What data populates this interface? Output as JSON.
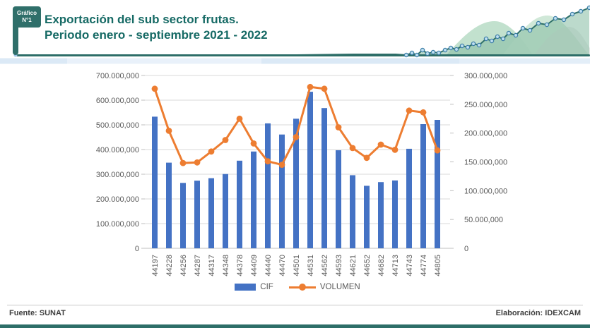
{
  "header": {
    "badge_line1": "Gráfico",
    "badge_line2": "N°1",
    "title_line1": "Exportación del sub sector frutas.",
    "title_line2": "Periodo enero - septiembre 2021 - 2022"
  },
  "footer": {
    "source": "Fuente: SUNAT",
    "elaboration": "Elaboración: IDEXCAM"
  },
  "colors": {
    "accent_teal": "#2D6E68",
    "title_teal": "#166A65",
    "bar_blue": "#4472C4",
    "line_orange": "#ED7D31",
    "axis_text": "#595959",
    "gridline": "#D9D9D9",
    "footer_text": "#3F3F3F"
  },
  "chart_data": {
    "type": "bar+line combo",
    "title": "Exportación del sub sector frutas. Periodo enero - septiembre 2021 - 2022",
    "categories": [
      "44197",
      "44228",
      "44256",
      "44287",
      "44317",
      "44348",
      "44378",
      "44409",
      "44440",
      "44470",
      "44501",
      "44531",
      "44562",
      "44593",
      "44621",
      "44652",
      "44682",
      "44713",
      "44743",
      "44774",
      "44805"
    ],
    "series": [
      {
        "name": "CIF",
        "kind": "bar",
        "axis": "left",
        "color": "#4472C4",
        "values": [
          533000000,
          347000000,
          265000000,
          274000000,
          284000000,
          301000000,
          355000000,
          392000000,
          506000000,
          461000000,
          525000000,
          634000000,
          568000000,
          397000000,
          296000000,
          253000000,
          268000000,
          275000000,
          403000000,
          503000000,
          520000000
        ]
      },
      {
        "name": "VOLUMEN",
        "kind": "line",
        "axis": "right",
        "color": "#ED7D31",
        "values": [
          277000000,
          204000000,
          148000000,
          149000000,
          168000000,
          188000000,
          225000000,
          182000000,
          151000000,
          145000000,
          193000000,
          280000000,
          277000000,
          210000000,
          174000000,
          157000000,
          180000000,
          171000000,
          239000000,
          236000000,
          170000000
        ]
      }
    ],
    "left_axis": {
      "min": 0,
      "max": 700000000,
      "step": 100000000,
      "tick_labels": [
        "0",
        "100.000,000",
        "200.000,000",
        "300.000,000",
        "400.000,000",
        "500.000,000",
        "600.000,000",
        "700.000,000"
      ]
    },
    "right_axis": {
      "min": 0,
      "max": 300000000,
      "step": 50000000,
      "tick_labels": [
        "0",
        "50.000,000",
        "100.000,000",
        "150.000,000",
        "200.000,000",
        "250.000,000",
        "300.000,000"
      ]
    },
    "legend": {
      "position": "bottom",
      "items": [
        "CIF",
        "VOLUMEN"
      ]
    },
    "grid": "horizontal"
  }
}
